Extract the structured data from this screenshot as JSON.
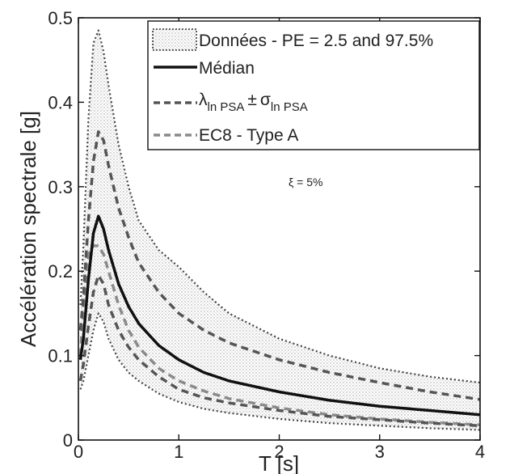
{
  "chart_data": {
    "type": "line",
    "xlabel": "T [s]",
    "ylabel": "Accélération spectrale [g]",
    "xlim": [
      0,
      4
    ],
    "ylim": [
      0,
      0.5
    ],
    "xticks": [
      0,
      1,
      2,
      3,
      4
    ],
    "xtick_labels": [
      "0",
      "1",
      "2",
      "3",
      "4"
    ],
    "yticks": [
      0,
      0.1,
      0.2,
      0.3,
      0.4,
      0.5
    ],
    "ytick_labels": [
      "0",
      "0.1",
      "0.2",
      "0.3",
      "0.4",
      "0.5"
    ],
    "annotation": "ξ = 5%",
    "legend": {
      "placement": "top-right",
      "entries": [
        {
          "label": "Données - PE = 2.5 and 97.5%",
          "style": "dotted-band"
        },
        {
          "label": "Médian",
          "style": "solid"
        },
        {
          "label_parts": {
            "lambda": "λ",
            "lambda_sub": "ln PSA",
            "pm": "±",
            "sigma": "σ",
            "sigma_sub": "ln PSA"
          },
          "style": "dashed"
        },
        {
          "label": "EC8 - Type A",
          "style": "dashed-grey"
        }
      ]
    },
    "x": [
      0.02,
      0.05,
      0.1,
      0.15,
      0.2,
      0.25,
      0.3,
      0.4,
      0.5,
      0.6,
      0.8,
      1.0,
      1.25,
      1.5,
      2.0,
      2.5,
      3.0,
      3.5,
      4.0
    ],
    "series": [
      {
        "name": "Médian",
        "style": "solid",
        "color": "#111111",
        "values": [
          0.095,
          0.12,
          0.19,
          0.245,
          0.265,
          0.25,
          0.225,
          0.185,
          0.158,
          0.138,
          0.112,
          0.095,
          0.08,
          0.07,
          0.057,
          0.047,
          0.04,
          0.035,
          0.03
        ]
      },
      {
        "name": "λ ln PSA + σ ln PSA",
        "style": "dashed",
        "color": "#555555",
        "values": [
          0.13,
          0.17,
          0.26,
          0.33,
          0.365,
          0.355,
          0.325,
          0.275,
          0.24,
          0.21,
          0.175,
          0.15,
          0.13,
          0.115,
          0.095,
          0.08,
          0.068,
          0.057,
          0.048
        ]
      },
      {
        "name": "λ ln PSA − σ ln PSA",
        "style": "dashed",
        "color": "#555555",
        "values": [
          0.07,
          0.09,
          0.135,
          0.175,
          0.195,
          0.185,
          0.16,
          0.13,
          0.11,
          0.095,
          0.075,
          0.06,
          0.05,
          0.044,
          0.035,
          0.028,
          0.024,
          0.02,
          0.017
        ]
      },
      {
        "name": "Données PE 97.5%",
        "style": "dotted",
        "color": "#444444",
        "values": [
          0.16,
          0.23,
          0.38,
          0.47,
          0.485,
          0.46,
          0.42,
          0.35,
          0.3,
          0.26,
          0.225,
          0.205,
          0.175,
          0.15,
          0.12,
          0.1,
          0.085,
          0.075,
          0.068
        ]
      },
      {
        "name": "Données PE 2.5%",
        "style": "dotted",
        "color": "#444444",
        "values": [
          0.06,
          0.07,
          0.1,
          0.13,
          0.15,
          0.14,
          0.12,
          0.095,
          0.08,
          0.07,
          0.055,
          0.045,
          0.037,
          0.032,
          0.025,
          0.02,
          0.017,
          0.014,
          0.012
        ]
      },
      {
        "name": "EC8 - Type A",
        "style": "dashed-grey",
        "color": "#8a8a8a",
        "values": [
          0.1,
          0.16,
          0.22,
          0.23,
          0.23,
          0.22,
          0.2,
          0.16,
          0.13,
          0.11,
          0.085,
          0.07,
          0.058,
          0.049,
          0.038,
          0.03,
          0.025,
          0.021,
          0.018
        ]
      }
    ]
  }
}
